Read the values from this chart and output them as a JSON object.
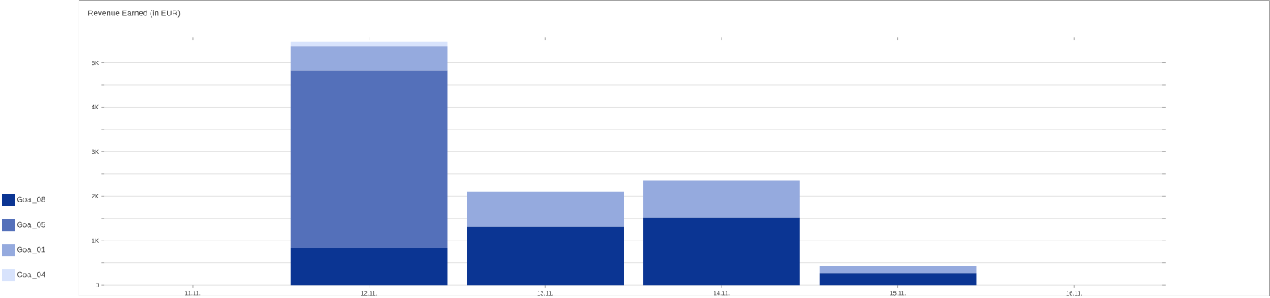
{
  "chart_data": {
    "type": "bar",
    "title": "Revenue Earned (in EUR)",
    "stacked": true,
    "categories": [
      "11.11.",
      "12.11.",
      "13.11.",
      "14.11.",
      "15.11.",
      "16.11."
    ],
    "series": [
      {
        "name": "Goal_08",
        "color": "#0b3593",
        "values": [
          null,
          840,
          1320,
          1520,
          270,
          null
        ]
      },
      {
        "name": "Goal_05",
        "color": "#5470ba",
        "values": [
          null,
          3980,
          null,
          null,
          null,
          null
        ]
      },
      {
        "name": "Goal_01",
        "color": "#95aade",
        "values": [
          null,
          550,
          780,
          840,
          170,
          null
        ]
      },
      {
        "name": "Goal_04",
        "color": "#d8e3fc",
        "values": [
          null,
          100,
          null,
          null,
          null,
          null
        ]
      }
    ],
    "ylim": [
      0,
      5500
    ],
    "yticks": [
      0,
      {
        "value": 500,
        "label": null
      },
      {
        "value": 1000,
        "label": "1K"
      },
      {
        "value": 1500,
        "label": null
      },
      {
        "value": 2000,
        "label": "2K"
      },
      {
        "value": 2500,
        "label": null
      },
      {
        "value": 3000,
        "label": "3K"
      },
      {
        "value": 3500,
        "label": null
      },
      {
        "value": 4000,
        "label": "4K"
      },
      {
        "value": 4500,
        "label": null
      },
      {
        "value": 5000,
        "label": "5K"
      }
    ],
    "grid": "y",
    "legend": "left"
  }
}
